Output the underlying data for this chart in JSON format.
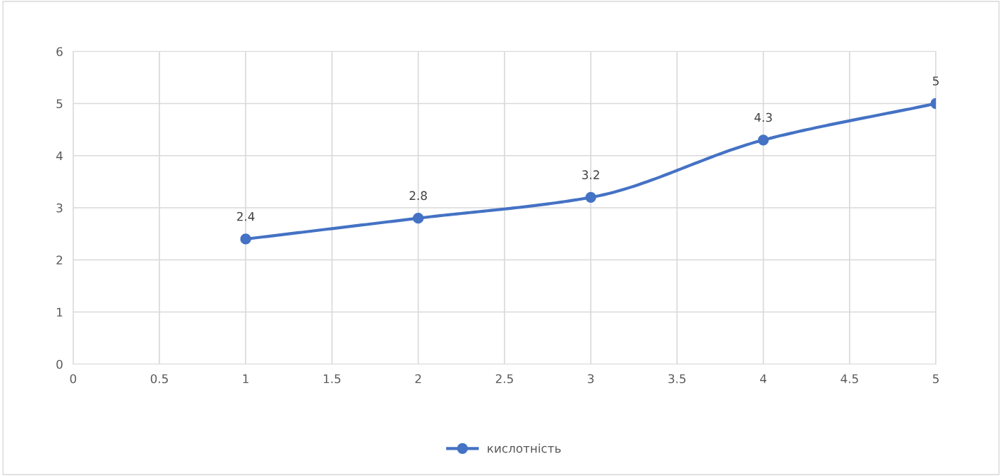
{
  "chart_data": {
    "type": "line",
    "x": [
      1,
      2,
      3,
      4,
      5
    ],
    "series": [
      {
        "name": "кислотність",
        "color": "#4472c4",
        "values": [
          2.4,
          2.8,
          3.2,
          4.3,
          5
        ]
      }
    ],
    "xlim": [
      0,
      5
    ],
    "xticks": [
      0,
      0.5,
      1,
      1.5,
      2,
      2.5,
      3,
      3.5,
      4,
      4.5,
      5
    ],
    "ylim": [
      0,
      6
    ],
    "yticks": [
      0,
      1,
      2,
      3,
      4,
      5,
      6
    ],
    "grid": true,
    "legend": "bottom",
    "marker": "circle",
    "line_style": "solid",
    "data_labels": true
  }
}
